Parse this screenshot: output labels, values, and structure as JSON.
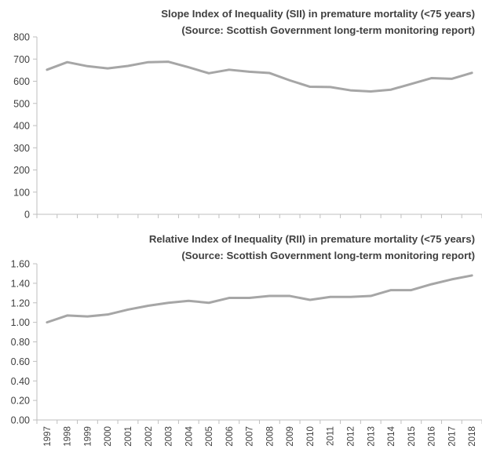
{
  "chart_data": [
    {
      "type": "line",
      "title": "Slope Index of Inequality (SII) in premature mortality (<75 years)",
      "subtitle": "(Source: Scottish Government long-term monitoring report)",
      "xlabel": "",
      "ylabel": "",
      "ylim": [
        0,
        800
      ],
      "yticks": [
        "0",
        "100",
        "200",
        "300",
        "400",
        "500",
        "600",
        "700",
        "800"
      ],
      "grid": false,
      "legend": "none",
      "line_color": "#a6a6a6",
      "x": [
        "1997",
        "1998",
        "1999",
        "2000",
        "2001",
        "2002",
        "2003",
        "2004",
        "2005",
        "2006",
        "2007",
        "2008",
        "2009",
        "2010",
        "2011",
        "2012",
        "2013",
        "2014",
        "2015",
        "2016",
        "2017",
        "2018"
      ],
      "values": [
        652,
        686,
        668,
        658,
        669,
        686,
        688,
        663,
        636,
        652,
        643,
        637,
        604,
        575,
        574,
        559,
        554,
        562,
        588,
        614,
        611,
        638
      ]
    },
    {
      "type": "line",
      "title": "Relative Index of Inequality (RII) in premature mortality (<75 years)",
      "subtitle": "(Source: Scottish Government long-term monitoring report)",
      "xlabel": "",
      "ylabel": "",
      "ylim": [
        0,
        1.6
      ],
      "yticks": [
        "0.00",
        "0.20",
        "0.40",
        "0.60",
        "0.80",
        "1.00",
        "1.20",
        "1.40",
        "1.60"
      ],
      "grid": false,
      "legend": "none",
      "line_color": "#a6a6a6",
      "x": [
        "1997",
        "1998",
        "1999",
        "2000",
        "2001",
        "2002",
        "2003",
        "2004",
        "2005",
        "2006",
        "2007",
        "2008",
        "2009",
        "2010",
        "2011",
        "2012",
        "2013",
        "2014",
        "2015",
        "2016",
        "2017",
        "2018"
      ],
      "values": [
        1.0,
        1.07,
        1.06,
        1.08,
        1.13,
        1.17,
        1.2,
        1.22,
        1.2,
        1.25,
        1.25,
        1.27,
        1.27,
        1.23,
        1.26,
        1.26,
        1.27,
        1.33,
        1.33,
        1.39,
        1.44,
        1.48
      ]
    }
  ]
}
